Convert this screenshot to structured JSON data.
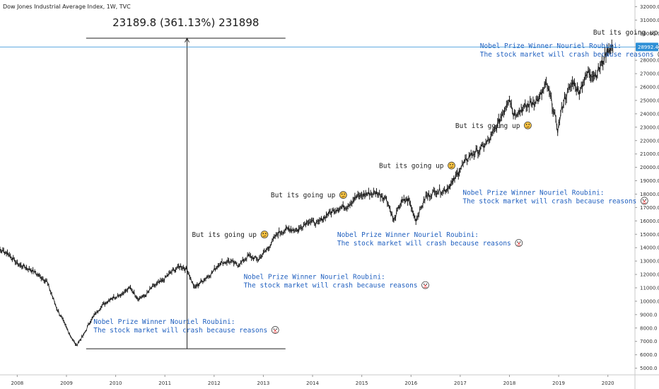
{
  "chart_title": "Dow Jones Industrial Average Index, 1W, TVC",
  "chart_data": {
    "type": "line",
    "x": [
      2007.5,
      2007.8,
      2008.0,
      2008.3,
      2008.6,
      2008.8,
      2008.95,
      2009.1,
      2009.2,
      2009.35,
      2009.5,
      2009.7,
      2009.9,
      2010.1,
      2010.3,
      2010.45,
      2010.6,
      2010.75,
      2010.95,
      2011.1,
      2011.3,
      2011.45,
      2011.6,
      2011.75,
      2011.95,
      2012.1,
      2012.3,
      2012.5,
      2012.7,
      2012.9,
      2013.1,
      2013.3,
      2013.5,
      2013.7,
      2013.9,
      2014.1,
      2014.3,
      2014.5,
      2014.7,
      2014.9,
      2015.1,
      2015.3,
      2015.5,
      2015.65,
      2015.8,
      2015.95,
      2016.1,
      2016.3,
      2016.5,
      2016.7,
      2016.85,
      2017.0,
      2017.2,
      2017.4,
      2017.6,
      2017.8,
      2018.0,
      2018.08,
      2018.2,
      2018.4,
      2018.6,
      2018.75,
      2018.85,
      2018.98,
      2019.1,
      2019.3,
      2019.4,
      2019.6,
      2019.75,
      2019.9,
      2020.0,
      2020.1
    ],
    "y": [
      14100,
      13600,
      12800,
      12300,
      11500,
      9500,
      8400,
      7300,
      6700,
      7500,
      8600,
      9600,
      10200,
      10500,
      11000,
      10200,
      10400,
      11100,
      11500,
      12100,
      12600,
      12400,
      11000,
      11500,
      12100,
      12800,
      13000,
      12700,
      13400,
      13100,
      14000,
      15100,
      15400,
      15300,
      16000,
      15800,
      16500,
      16900,
      17100,
      17800,
      18000,
      18100,
      17700,
      16000,
      17400,
      17600,
      16100,
      17800,
      18200,
      18300,
      18900,
      19900,
      20900,
      21300,
      22100,
      23500,
      25300,
      24000,
      24200,
      24700,
      25100,
      26200,
      25000,
      22800,
      25000,
      26400,
      25600,
      27100,
      26900,
      27900,
      28800,
      28992.4
    ],
    "ylim": [
      4500,
      32500
    ],
    "xlim": [
      2007.65,
      2020.55
    ],
    "y_ticks": [
      "32000.0",
      "31000.0",
      "30000.0",
      "29000.0",
      "28000.0",
      "27000.0",
      "26000.0",
      "25000.0",
      "24000.0",
      "23000.0",
      "22000.0",
      "21000.0",
      "20000.0",
      "19000.0",
      "18000.0",
      "17000.0",
      "16000.0",
      "15000.0",
      "14000.0",
      "13000.0",
      "12000.0",
      "11000.0",
      "10000.0",
      "9000.0",
      "8000.0",
      "7000.0",
      "6000.0",
      "5000.0"
    ],
    "x_ticks": [
      "2008",
      "2009",
      "2010",
      "2011",
      "2012",
      "2013",
      "2014",
      "2015",
      "2016",
      "2017",
      "2018",
      "2019",
      "2020"
    ],
    "last_value_label": "28992.4",
    "measure_label": "23189.8 (361.13%) 231898",
    "measure_range": {
      "x_start": 2009.4,
      "x_end": 2013.45,
      "x_arrow": 2011.45,
      "y_low": 6450,
      "y_high": 29650
    },
    "annotations": [
      {
        "lines": [
          "But its going up"
        ],
        "emoji": "😕",
        "color": "black",
        "x": 2019.7,
        "y": 29900
      },
      {
        "lines": [
          "Nobel Prize Winner Nouriel Roubini:",
          "The stock market will crash because reasons"
        ],
        "emoji": "🤡",
        "color": "blue",
        "x": 2017.4,
        "y": 28900
      },
      {
        "lines": [
          "But its going up"
        ],
        "emoji": "😕",
        "color": "black",
        "x": 2016.9,
        "y": 22950
      },
      {
        "lines": [
          "But its going up"
        ],
        "emoji": "😕",
        "color": "black",
        "x": 2015.35,
        "y": 19950
      },
      {
        "lines": [
          "Nobel Prize Winner Nouriel Roubini:",
          "The stock market will crash because reasons"
        ],
        "emoji": "🤡",
        "color": "blue",
        "x": 2017.05,
        "y": 17950
      },
      {
        "lines": [
          "But its going up"
        ],
        "emoji": "😕",
        "color": "black",
        "x": 2013.15,
        "y": 17750
      },
      {
        "lines": [
          "Nobel Prize Winner Nouriel Roubini:",
          "The stock market will crash because reasons"
        ],
        "emoji": "🤡",
        "color": "blue",
        "x": 2014.5,
        "y": 14800
      },
      {
        "lines": [
          "But its going up"
        ],
        "emoji": "😕",
        "color": "black",
        "x": 2011.55,
        "y": 14800
      },
      {
        "lines": [
          "Nobel Prize Winner Nouriel Roubini:",
          "The stock market will crash because reasons"
        ],
        "emoji": "🤡",
        "color": "blue",
        "x": 2012.6,
        "y": 11650
      },
      {
        "lines": [
          "Nobel Prize Winner Nouriel Roubini:",
          "The stock market will crash because reasons"
        ],
        "emoji": "🤡",
        "color": "blue",
        "x": 2009.55,
        "y": 8300
      }
    ]
  },
  "colors": {
    "price_line": "#1a1a1a",
    "last_line": "#2d8fd6",
    "last_badge": "#2d8fd6",
    "axis_line": "#c8c8c8",
    "blue_text": "#1f5fbf"
  }
}
